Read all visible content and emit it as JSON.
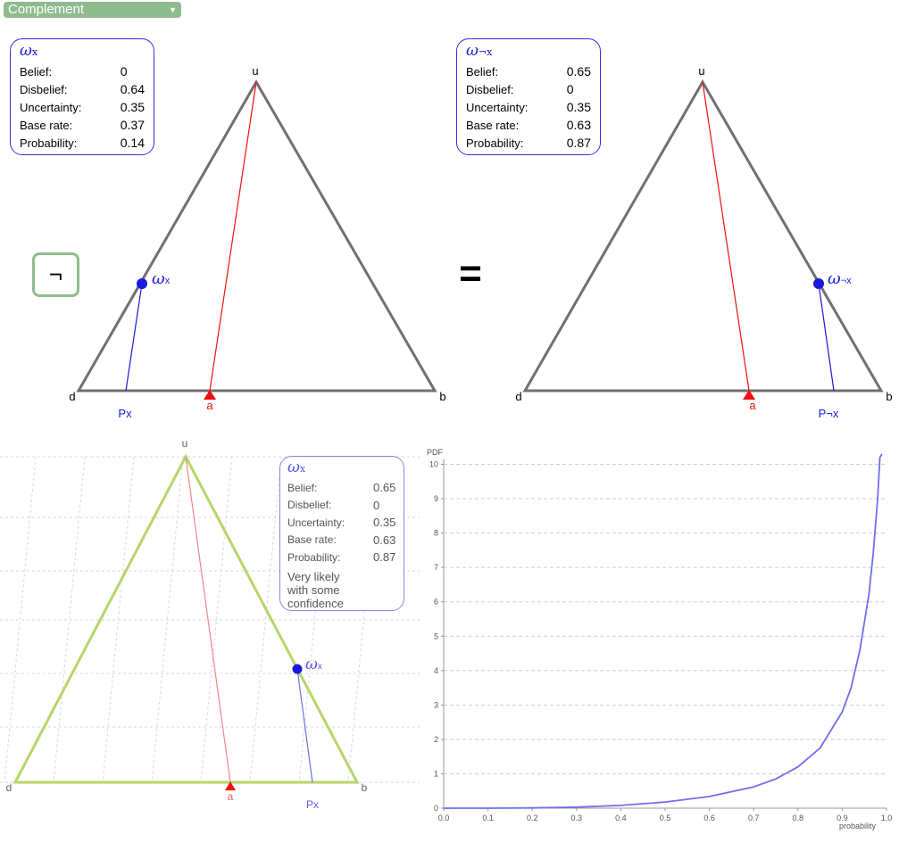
{
  "operator": {
    "selected": "Complement",
    "symbol": "¬",
    "equals": "="
  },
  "left_triangle": {
    "vertex_labels": {
      "top": "u",
      "left": "d",
      "right": "b"
    },
    "opinion_label": "ω",
    "opinion_sub": "x",
    "base_rate_label": "a",
    "projection_label": "Px",
    "opinion": {
      "belief": 0,
      "disbelief": 0.64,
      "uncertainty": 0.35,
      "base_rate": 0.37,
      "probability": 0.14
    }
  },
  "right_triangle": {
    "vertex_labels": {
      "top": "u",
      "left": "d",
      "right": "b"
    },
    "opinion_label": "ω",
    "opinion_sub": "¬x",
    "base_rate_label": "a",
    "projection_label": "P¬x",
    "opinion": {
      "belief": 0.65,
      "disbelief": 0,
      "uncertainty": 0.35,
      "base_rate": 0.63,
      "probability": 0.87
    }
  },
  "left_box": {
    "omega": "ω",
    "sub": "x",
    "rows": [
      {
        "label": "Belief:",
        "value": "0"
      },
      {
        "label": "Disbelief:",
        "value": "0.64"
      },
      {
        "label": "Uncertainty:",
        "value": "0.35"
      },
      {
        "label": "Base rate:",
        "value": "0.37"
      },
      {
        "label": "Probability:",
        "value": "0.14"
      }
    ]
  },
  "right_box": {
    "omega": "ω",
    "sub": "¬x",
    "rows": [
      {
        "label": "Belief:",
        "value": "0.65"
      },
      {
        "label": "Disbelief:",
        "value": "0"
      },
      {
        "label": "Uncertainty:",
        "value": "0.35"
      },
      {
        "label": "Base rate:",
        "value": "0.63"
      },
      {
        "label": "Probability:",
        "value": "0.87"
      }
    ]
  },
  "result_triangle": {
    "vertex_labels": {
      "top": "u",
      "left": "d",
      "right": "b"
    },
    "opinion_label": "ω",
    "opinion_sub": "x",
    "base_rate_label": "a",
    "projection_label": "Px"
  },
  "result_box": {
    "omega": "ω",
    "sub": "x",
    "rows": [
      {
        "label": "Belief:",
        "value": "0.65"
      },
      {
        "label": "Disbelief:",
        "value": "0"
      },
      {
        "label": "Uncertainty:",
        "value": "0.35"
      },
      {
        "label": "Base rate:",
        "value": "0.63"
      },
      {
        "label": "Probability:",
        "value": "0.87"
      }
    ],
    "verbal_line1": "Very likely",
    "verbal_line2": "with some confidence"
  },
  "colors": {
    "triangle_gray": "#707070",
    "triangle_green": "#b5d66a",
    "opinion_blue": "#1a1adc",
    "base_rate_red": "#ee1111",
    "accent_green": "#8fbc8f",
    "pdf_curve": "#6f6ff0"
  },
  "chart_data": {
    "type": "line",
    "title": "",
    "ylabel": "PDF",
    "xlabel": "probability",
    "xlim": [
      0,
      1
    ],
    "ylim": [
      0,
      10
    ],
    "x_ticks": [
      "0.0",
      "0.1",
      "0.2",
      "0.3",
      "0.4",
      "0.5",
      "0.6",
      "0.7",
      "0.8",
      "0.9",
      "1.0"
    ],
    "y_ticks": [
      "0",
      "1",
      "2",
      "3",
      "4",
      "5",
      "6",
      "7",
      "8",
      "9",
      "10"
    ],
    "grid": "horizontal dashed",
    "series": [
      {
        "x": [
          0,
          0.1,
          0.2,
          0.3,
          0.4,
          0.5,
          0.6,
          0.7,
          0.75,
          0.8,
          0.85,
          0.9,
          0.92,
          0.94,
          0.96,
          0.97,
          0.98,
          0.985,
          0.99
        ],
        "y": [
          0,
          0.001,
          0.008,
          0.03,
          0.08,
          0.18,
          0.34,
          0.62,
          0.85,
          1.2,
          1.75,
          2.8,
          3.5,
          4.6,
          6.2,
          7.4,
          9.0,
          10.2,
          11.8
        ]
      }
    ]
  }
}
